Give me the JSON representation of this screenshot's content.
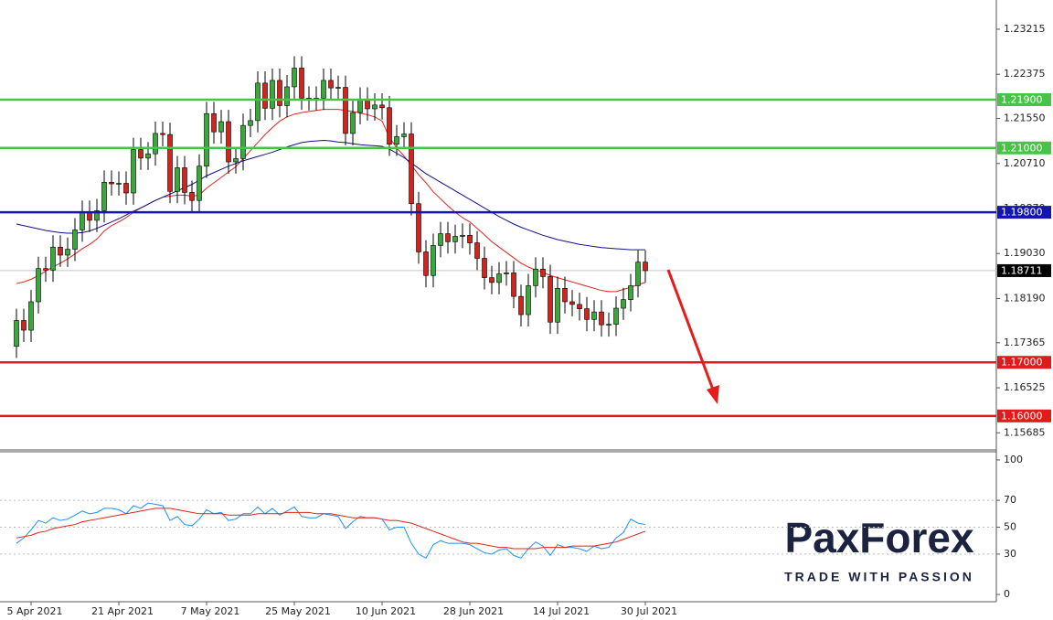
{
  "chart_data": [
    {
      "type": "candlestick",
      "categories": [
        null,
        null,
        "5 Apr 2021",
        null,
        null,
        null,
        null,
        null,
        null,
        null,
        null,
        null,
        null,
        null,
        "21 Apr 2021",
        null,
        null,
        null,
        null,
        null,
        null,
        null,
        null,
        null,
        null,
        null,
        "7 May 2021",
        null,
        null,
        null,
        null,
        null,
        null,
        null,
        null,
        null,
        null,
        null,
        "25 May 2021",
        null,
        null,
        null,
        null,
        null,
        null,
        null,
        null,
        null,
        null,
        null,
        "10 Jun 2021",
        null,
        null,
        null,
        null,
        null,
        null,
        null,
        null,
        null,
        null,
        null,
        "28 Jun 2021",
        null,
        null,
        null,
        null,
        null,
        null,
        null,
        null,
        null,
        null,
        null,
        "14 Jul 2021",
        null,
        null,
        null,
        null,
        null,
        null,
        null,
        null,
        null,
        null,
        null,
        "30 Jul 2021"
      ],
      "open": [
        1.173,
        1.1778,
        1.176,
        1.1813,
        1.1875,
        1.1872,
        1.1915,
        1.19,
        1.1911,
        1.1947,
        1.198,
        1.1965,
        1.1983,
        1.2036,
        1.2033,
        1.2034,
        1.2016,
        1.2097,
        1.2081,
        1.2089,
        1.2127,
        1.2125,
        1.2019,
        1.2063,
        1.2017,
        1.2002,
        1.2066,
        1.2164,
        1.213,
        1.2149,
        1.2074,
        1.208,
        1.2142,
        1.2151,
        1.2221,
        1.2174,
        1.2226,
        1.2179,
        1.2214,
        1.2249,
        1.2193,
        1.2192,
        1.2193,
        1.2226,
        1.2212,
        1.2213,
        1.2127,
        1.2166,
        1.2191,
        1.2173,
        1.218,
        1.2175,
        1.2107,
        1.2121,
        1.2126,
        1.1996,
        1.1906,
        1.1862,
        1.1918,
        1.194,
        1.1925,
        1.1935,
        1.1937,
        1.1923,
        1.1894,
        1.1858,
        1.1849,
        1.1865,
        1.1867,
        1.1823,
        1.1789,
        1.1843,
        1.1874,
        1.186,
        1.1775,
        1.1838,
        1.1813,
        1.1808,
        1.18,
        1.178,
        1.1794,
        1.177,
        1.1771,
        1.1801,
        1.1817,
        1.1843,
        1.1887
      ],
      "high": [
        1.18,
        1.18,
        1.1835,
        1.1897,
        1.1897,
        1.1937,
        1.1937,
        1.1933,
        1.1969,
        1.2002,
        1.2002,
        1.2005,
        1.2058,
        1.2058,
        1.2056,
        1.2056,
        1.2119,
        1.2119,
        1.2111,
        1.2149,
        1.2149,
        1.2147,
        1.2085,
        1.2085,
        1.2039,
        1.2088,
        1.2186,
        1.2186,
        1.2171,
        1.2171,
        1.2102,
        1.2164,
        1.2173,
        1.2243,
        1.2243,
        1.2248,
        1.2248,
        1.2236,
        1.2271,
        1.2271,
        1.2215,
        1.2215,
        1.2248,
        1.2248,
        1.2235,
        1.2235,
        1.2188,
        1.2213,
        1.2213,
        1.2202,
        1.2202,
        1.2197,
        1.2143,
        1.2148,
        1.2148,
        1.2018,
        1.1928,
        1.194,
        1.1962,
        1.1962,
        1.1957,
        1.1959,
        1.1959,
        1.1945,
        1.1916,
        1.188,
        1.1887,
        1.1889,
        1.1889,
        1.1845,
        1.1865,
        1.1896,
        1.1896,
        1.1882,
        1.186,
        1.186,
        1.1835,
        1.183,
        1.1822,
        1.1816,
        1.1816,
        1.1793,
        1.1823,
        1.1839,
        1.1865,
        1.1909,
        1.1909
      ],
      "low": [
        1.1708,
        1.1738,
        1.1738,
        1.1791,
        1.185,
        1.185,
        1.1878,
        1.1878,
        1.1889,
        1.1925,
        1.1943,
        1.1943,
        1.1961,
        1.2011,
        1.2011,
        1.1994,
        1.1994,
        1.2059,
        1.2059,
        1.2067,
        1.2103,
        1.1997,
        1.1997,
        1.1995,
        1.198,
        1.198,
        1.2044,
        1.2108,
        1.2108,
        1.2052,
        1.2052,
        1.2058,
        1.212,
        1.2129,
        1.2152,
        1.2152,
        1.2157,
        1.2157,
        1.2192,
        1.2171,
        1.217,
        1.217,
        1.2171,
        1.219,
        1.219,
        1.2105,
        1.2105,
        1.2144,
        1.2151,
        1.2151,
        1.2153,
        1.2085,
        1.2085,
        1.2099,
        1.1974,
        1.1884,
        1.184,
        1.184,
        1.1896,
        1.1903,
        1.1903,
        1.1913,
        1.1901,
        1.1872,
        1.1836,
        1.1827,
        1.1827,
        1.1843,
        1.1801,
        1.1767,
        1.1767,
        1.1821,
        1.1838,
        1.1753,
        1.1753,
        1.1791,
        1.1786,
        1.1778,
        1.1758,
        1.1758,
        1.1748,
        1.1748,
        1.1749,
        1.1779,
        1.1795,
        1.1821,
        1.1849
      ],
      "close": [
        1.1778,
        1.176,
        1.1813,
        1.1875,
        1.1872,
        1.1915,
        1.19,
        1.1911,
        1.1947,
        1.198,
        1.1965,
        1.1983,
        1.2036,
        1.2033,
        1.2034,
        1.2016,
        1.2097,
        1.2081,
        1.2089,
        1.2127,
        1.2125,
        1.2019,
        1.2063,
        1.2017,
        1.2002,
        1.2066,
        1.2164,
        1.213,
        1.2149,
        1.2074,
        1.208,
        1.2142,
        1.2151,
        1.2221,
        1.2174,
        1.2226,
        1.2179,
        1.2214,
        1.2249,
        1.2193,
        1.2192,
        1.2193,
        1.2226,
        1.2212,
        1.2213,
        1.2127,
        1.2166,
        1.2191,
        1.2173,
        1.218,
        1.2175,
        1.2107,
        1.2121,
        1.2126,
        1.1996,
        1.1906,
        1.1862,
        1.1918,
        1.194,
        1.1925,
        1.1935,
        1.1937,
        1.1923,
        1.1894,
        1.1858,
        1.1849,
        1.1865,
        1.1867,
        1.1823,
        1.1789,
        1.1843,
        1.1874,
        1.186,
        1.1775,
        1.1838,
        1.1813,
        1.1808,
        1.18,
        1.178,
        1.1794,
        1.177,
        1.1771,
        1.1801,
        1.1817,
        1.1843,
        1.1887,
        1.1871
      ],
      "up_color": "#3aa83a",
      "down_color": "#d2231d",
      "lines": [
        {
          "color": "#e0231c",
          "values": [
            1.1847,
            1.185,
            1.1855,
            1.1862,
            1.187,
            1.1878,
            1.1885,
            1.1893,
            1.1902,
            1.1912,
            1.192,
            1.193,
            1.1945,
            1.1955,
            1.1962,
            1.197,
            1.198,
            1.1988,
            1.1995,
            1.2002,
            1.2008,
            1.201,
            1.2012,
            1.2012,
            1.201,
            1.2012,
            1.2025,
            1.2035,
            1.2045,
            1.2055,
            1.2065,
            1.208,
            1.2095,
            1.211,
            1.2125,
            1.2138,
            1.215,
            1.2158,
            1.2163,
            1.2166,
            1.2168,
            1.217,
            1.2172,
            1.2172,
            1.2172,
            1.217,
            1.2168,
            1.2165,
            1.2162,
            1.2158,
            1.215,
            1.212,
            1.21,
            1.2085,
            1.2068,
            1.205,
            1.2035,
            1.2018,
            1.2005,
            1.1992,
            1.198,
            1.197,
            1.1962,
            1.195,
            1.1938,
            1.1925,
            1.1915,
            1.1905,
            1.1895,
            1.1885,
            1.1878,
            1.1872,
            1.1868,
            1.1862,
            1.1858,
            1.1854,
            1.185,
            1.1846,
            1.1842,
            1.1838,
            1.1834,
            1.1832,
            1.1832,
            1.1836,
            1.184,
            1.1845,
            1.1849
          ]
        },
        {
          "color": "#10108a",
          "values": [
            1.1958,
            1.1955,
            1.1952,
            1.1949,
            1.1946,
            1.1944,
            1.1942,
            1.1941,
            1.1941,
            1.1942,
            1.1945,
            1.195,
            1.1956,
            1.1962,
            1.1968,
            1.1975,
            1.1982,
            1.1988,
            1.1995,
            1.2002,
            1.2008,
            1.2014,
            1.202,
            1.2026,
            1.2032,
            1.204,
            1.2048,
            1.2054,
            1.206,
            1.2066,
            1.2071,
            1.2076,
            1.208,
            1.2084,
            1.2088,
            1.2092,
            1.2097,
            1.2102,
            1.2106,
            1.211,
            1.2112,
            1.2113,
            1.2114,
            1.2113,
            1.2111,
            1.211,
            1.2108,
            1.2106,
            1.2105,
            1.2104,
            1.2103,
            1.2098,
            1.209,
            1.2082,
            1.2072,
            1.2062,
            1.2052,
            1.2044,
            1.2036,
            1.2028,
            1.202,
            1.2012,
            1.2004,
            1.1996,
            1.1988,
            1.198,
            1.1972,
            1.1965,
            1.1958,
            1.1952,
            1.1947,
            1.1942,
            1.1937,
            1.1933,
            1.1929,
            1.1926,
            1.1923,
            1.192,
            1.1918,
            1.1916,
            1.1914,
            1.1913,
            1.1912,
            1.1911,
            1.191,
            1.191,
            1.191
          ]
        }
      ],
      "levels": [
        {
          "value": 1.219,
          "label": "1.21900",
          "color": "#45c445"
        },
        {
          "value": 1.21,
          "label": "1.21000",
          "color": "#45c445"
        },
        {
          "value": 1.198,
          "label": "1.19800",
          "color": "#1515b5"
        },
        {
          "value": 1.17,
          "label": "1.17000",
          "color": "#e01b1b"
        },
        {
          "value": 1.16,
          "label": "1.16000",
          "color": "#e01b1b"
        }
      ],
      "last_price": 1.18711,
      "ylim": [
        1.154,
        1.2376
      ],
      "yticks": [
        1.23215,
        1.22375,
        {
          "value": 1.2155,
          "label": "1.21550"
        },
        {
          "value": 1.2071,
          "label": "1.20710"
        },
        {
          "value": 1.1987,
          "label": "1.19870"
        },
        {
          "value": 1.1903,
          "label": "1.19030"
        },
        {
          "value": 1.1819,
          "label": "1.18190"
        },
        1.17365,
        1.16525,
        1.15685
      ]
    },
    {
      "type": "line",
      "series": [
        {
          "color": "#1e90ff",
          "values": [
            38,
            42,
            48,
            55,
            53,
            57,
            55,
            56,
            59,
            62,
            60,
            61,
            64,
            64,
            63,
            60,
            66,
            64,
            68,
            67,
            66,
            55,
            58,
            52,
            51,
            56,
            63,
            60,
            61,
            55,
            56,
            60,
            60,
            65,
            60,
            64,
            59,
            62,
            65,
            58,
            57,
            57,
            60,
            59,
            58,
            49,
            54,
            58,
            57,
            57,
            56,
            48,
            50,
            50,
            38,
            30,
            27,
            37,
            40,
            38,
            38,
            38,
            37,
            34,
            31,
            30,
            33,
            34,
            29,
            27,
            34,
            39,
            36,
            29,
            37,
            35,
            35,
            34,
            32,
            36,
            34,
            35,
            42,
            46,
            56,
            53,
            52
          ]
        },
        {
          "color": "#e0231c",
          "values": [
            42,
            43,
            44,
            46,
            47,
            49,
            50,
            51,
            52,
            54,
            55,
            56,
            57,
            58,
            59,
            60,
            61,
            62,
            63,
            64,
            64,
            64,
            63,
            62,
            61,
            60,
            60,
            60,
            60,
            59,
            59,
            59,
            59,
            60,
            60,
            60,
            60,
            61,
            61,
            61,
            61,
            60,
            60,
            60,
            59,
            58,
            57,
            57,
            57,
            57,
            56,
            55,
            55,
            54,
            53,
            51,
            49,
            47,
            45,
            43,
            41,
            39,
            38,
            38,
            37,
            36,
            35,
            35,
            34,
            34,
            34,
            34,
            35,
            35,
            35,
            35,
            36,
            36,
            36,
            36,
            37,
            38,
            39,
            41,
            43,
            45,
            47
          ]
        }
      ],
      "ylim": [
        -5.4,
        106.1
      ],
      "yticks": [
        0,
        30,
        50,
        70,
        100
      ],
      "grid": true
    }
  ],
  "watermark": {
    "name": "PaxForex",
    "tagline": "TRADE WITH PASSION"
  }
}
